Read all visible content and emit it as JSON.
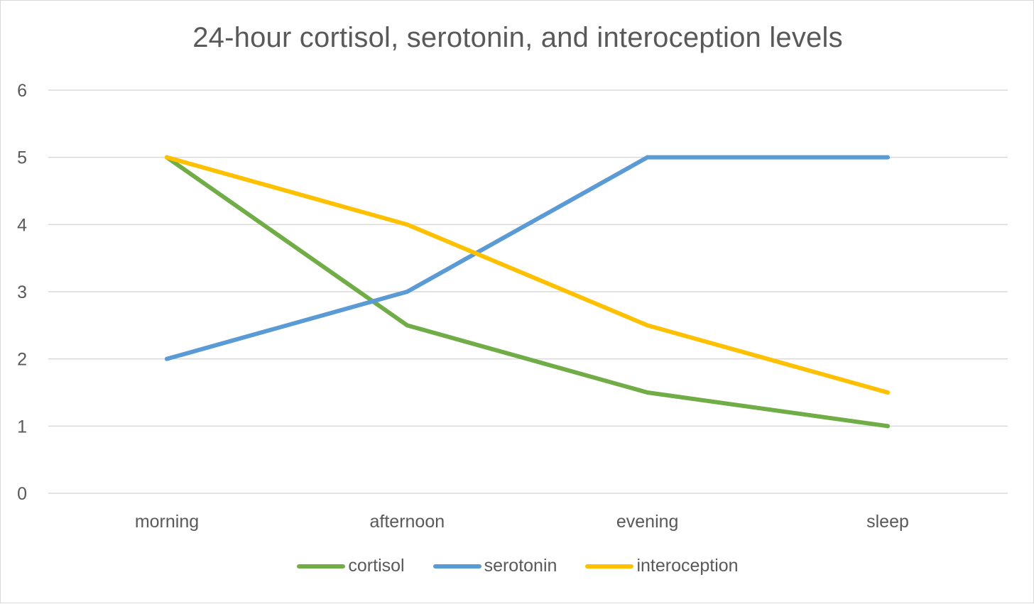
{
  "chart_data": {
    "type": "line",
    "title": "24-hour cortisol, serotonin, and interoception levels",
    "xlabel": "",
    "ylabel": "",
    "categories": [
      "morning",
      "afternoon",
      "evening",
      "sleep"
    ],
    "ylim": [
      0,
      6
    ],
    "yticks": [
      0,
      1,
      2,
      3,
      4,
      5,
      6
    ],
    "grid": true,
    "legend_position": "bottom",
    "series": [
      {
        "name": "cortisol",
        "color": "#70ad47",
        "values": [
          5,
          2.5,
          1.5,
          1
        ]
      },
      {
        "name": "serotonin",
        "color": "#5b9bd5",
        "values": [
          2,
          3,
          5,
          5
        ]
      },
      {
        "name": "interoception",
        "color": "#ffc000",
        "values": [
          5,
          4,
          2.5,
          1.5
        ]
      }
    ]
  }
}
